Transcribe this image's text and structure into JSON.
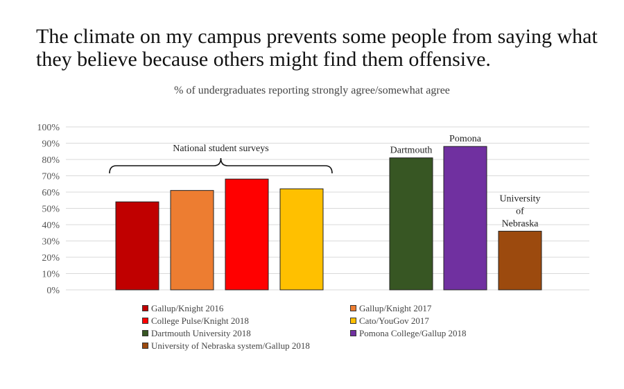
{
  "chart_data": {
    "type": "bar",
    "title": "The climate on my campus prevents some people from saying what they believe because others might find them offensive.",
    "subtitle": "% of  undergraduates reporting strongly agree/somewhat agree",
    "ylim": [
      0,
      100
    ],
    "yticks": [
      "0%",
      "10%",
      "20%",
      "30%",
      "40%",
      "50%",
      "60%",
      "70%",
      "80%",
      "90%",
      "100%"
    ],
    "grid": true,
    "legend_position": "bottom",
    "categories": [
      "Gallup/Knight 2016",
      "Gallup/Knight 2017",
      "College Pulse/Knight 2018",
      "Cato/YouGov 2017",
      "Dartmouth University 2018",
      "Pomona College/Gallup 2018",
      "University of Nebraska system/Gallup 2018"
    ],
    "values": [
      54,
      61,
      68,
      62,
      81,
      88,
      36
    ],
    "colors": [
      "#c00000",
      "#ed7d31",
      "#ff0000",
      "#ffc000",
      "#375623",
      "#7030a0",
      "#9c4a0e"
    ],
    "annotations": {
      "bracket_label": "National student surveys",
      "bar_labels": [
        {
          "index": 4,
          "lines": [
            "Dartmouth"
          ]
        },
        {
          "index": 5,
          "lines": [
            "Pomona"
          ]
        },
        {
          "index": 6,
          "lines": [
            "University",
            "of",
            "Nebraska"
          ]
        }
      ]
    }
  }
}
